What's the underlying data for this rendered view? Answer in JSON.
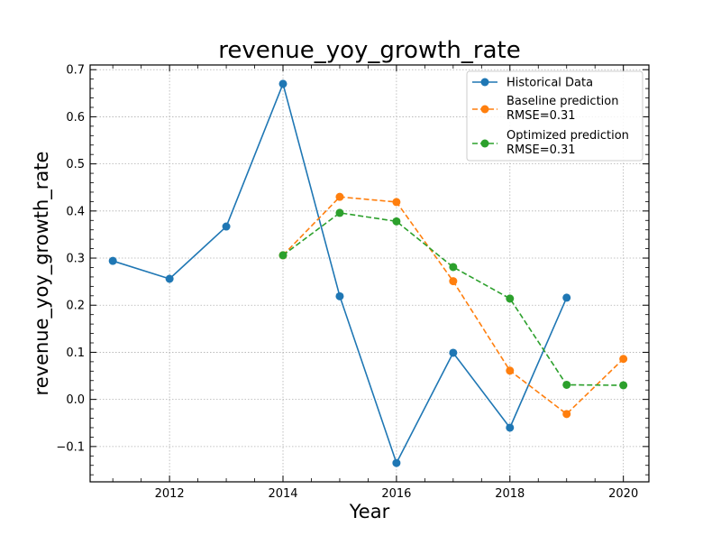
{
  "chart_data": {
    "type": "line",
    "title": "revenue_yoy_growth_rate",
    "xlabel": "Year",
    "ylabel": "revenue_yoy_growth_rate",
    "xlim": [
      2010.6,
      2020.45
    ],
    "ylim": [
      -0.175,
      0.71
    ],
    "xticks": [
      2012,
      2014,
      2016,
      2018,
      2020
    ],
    "xtick_labels": [
      "2012",
      "2014",
      "2016",
      "2018",
      "2020"
    ],
    "yticks": [
      -0.1,
      0.0,
      0.1,
      0.2,
      0.3,
      0.4,
      0.5,
      0.6,
      0.7
    ],
    "ytick_labels": [
      "−0.1",
      "0.0",
      "0.1",
      "0.2",
      "0.3",
      "0.4",
      "0.5",
      "0.6",
      "0.7"
    ],
    "grid": true,
    "legend_position": "top-right",
    "series": [
      {
        "name": "Historical Data",
        "color": "#1f77b4",
        "linestyle": "solid",
        "x": [
          2011,
          2012,
          2013,
          2014,
          2015,
          2016,
          2017,
          2018,
          2019
        ],
        "y": [
          0.294,
          0.256,
          0.367,
          0.67,
          0.219,
          -0.135,
          0.099,
          -0.06,
          0.216
        ]
      },
      {
        "name": "Baseline prediction\nRMSE=0.31",
        "color": "#ff7f0e",
        "linestyle": "dashed",
        "x": [
          2014,
          2015,
          2016,
          2017,
          2018,
          2019,
          2020
        ],
        "y": [
          0.306,
          0.43,
          0.419,
          0.251,
          0.061,
          -0.031,
          0.086
        ]
      },
      {
        "name": "Optimized prediction\nRMSE=0.31",
        "color": "#2ca02c",
        "linestyle": "dashed",
        "x": [
          2014,
          2015,
          2016,
          2017,
          2018,
          2019,
          2020
        ],
        "y": [
          0.306,
          0.396,
          0.378,
          0.281,
          0.214,
          0.031,
          0.03
        ]
      }
    ]
  }
}
